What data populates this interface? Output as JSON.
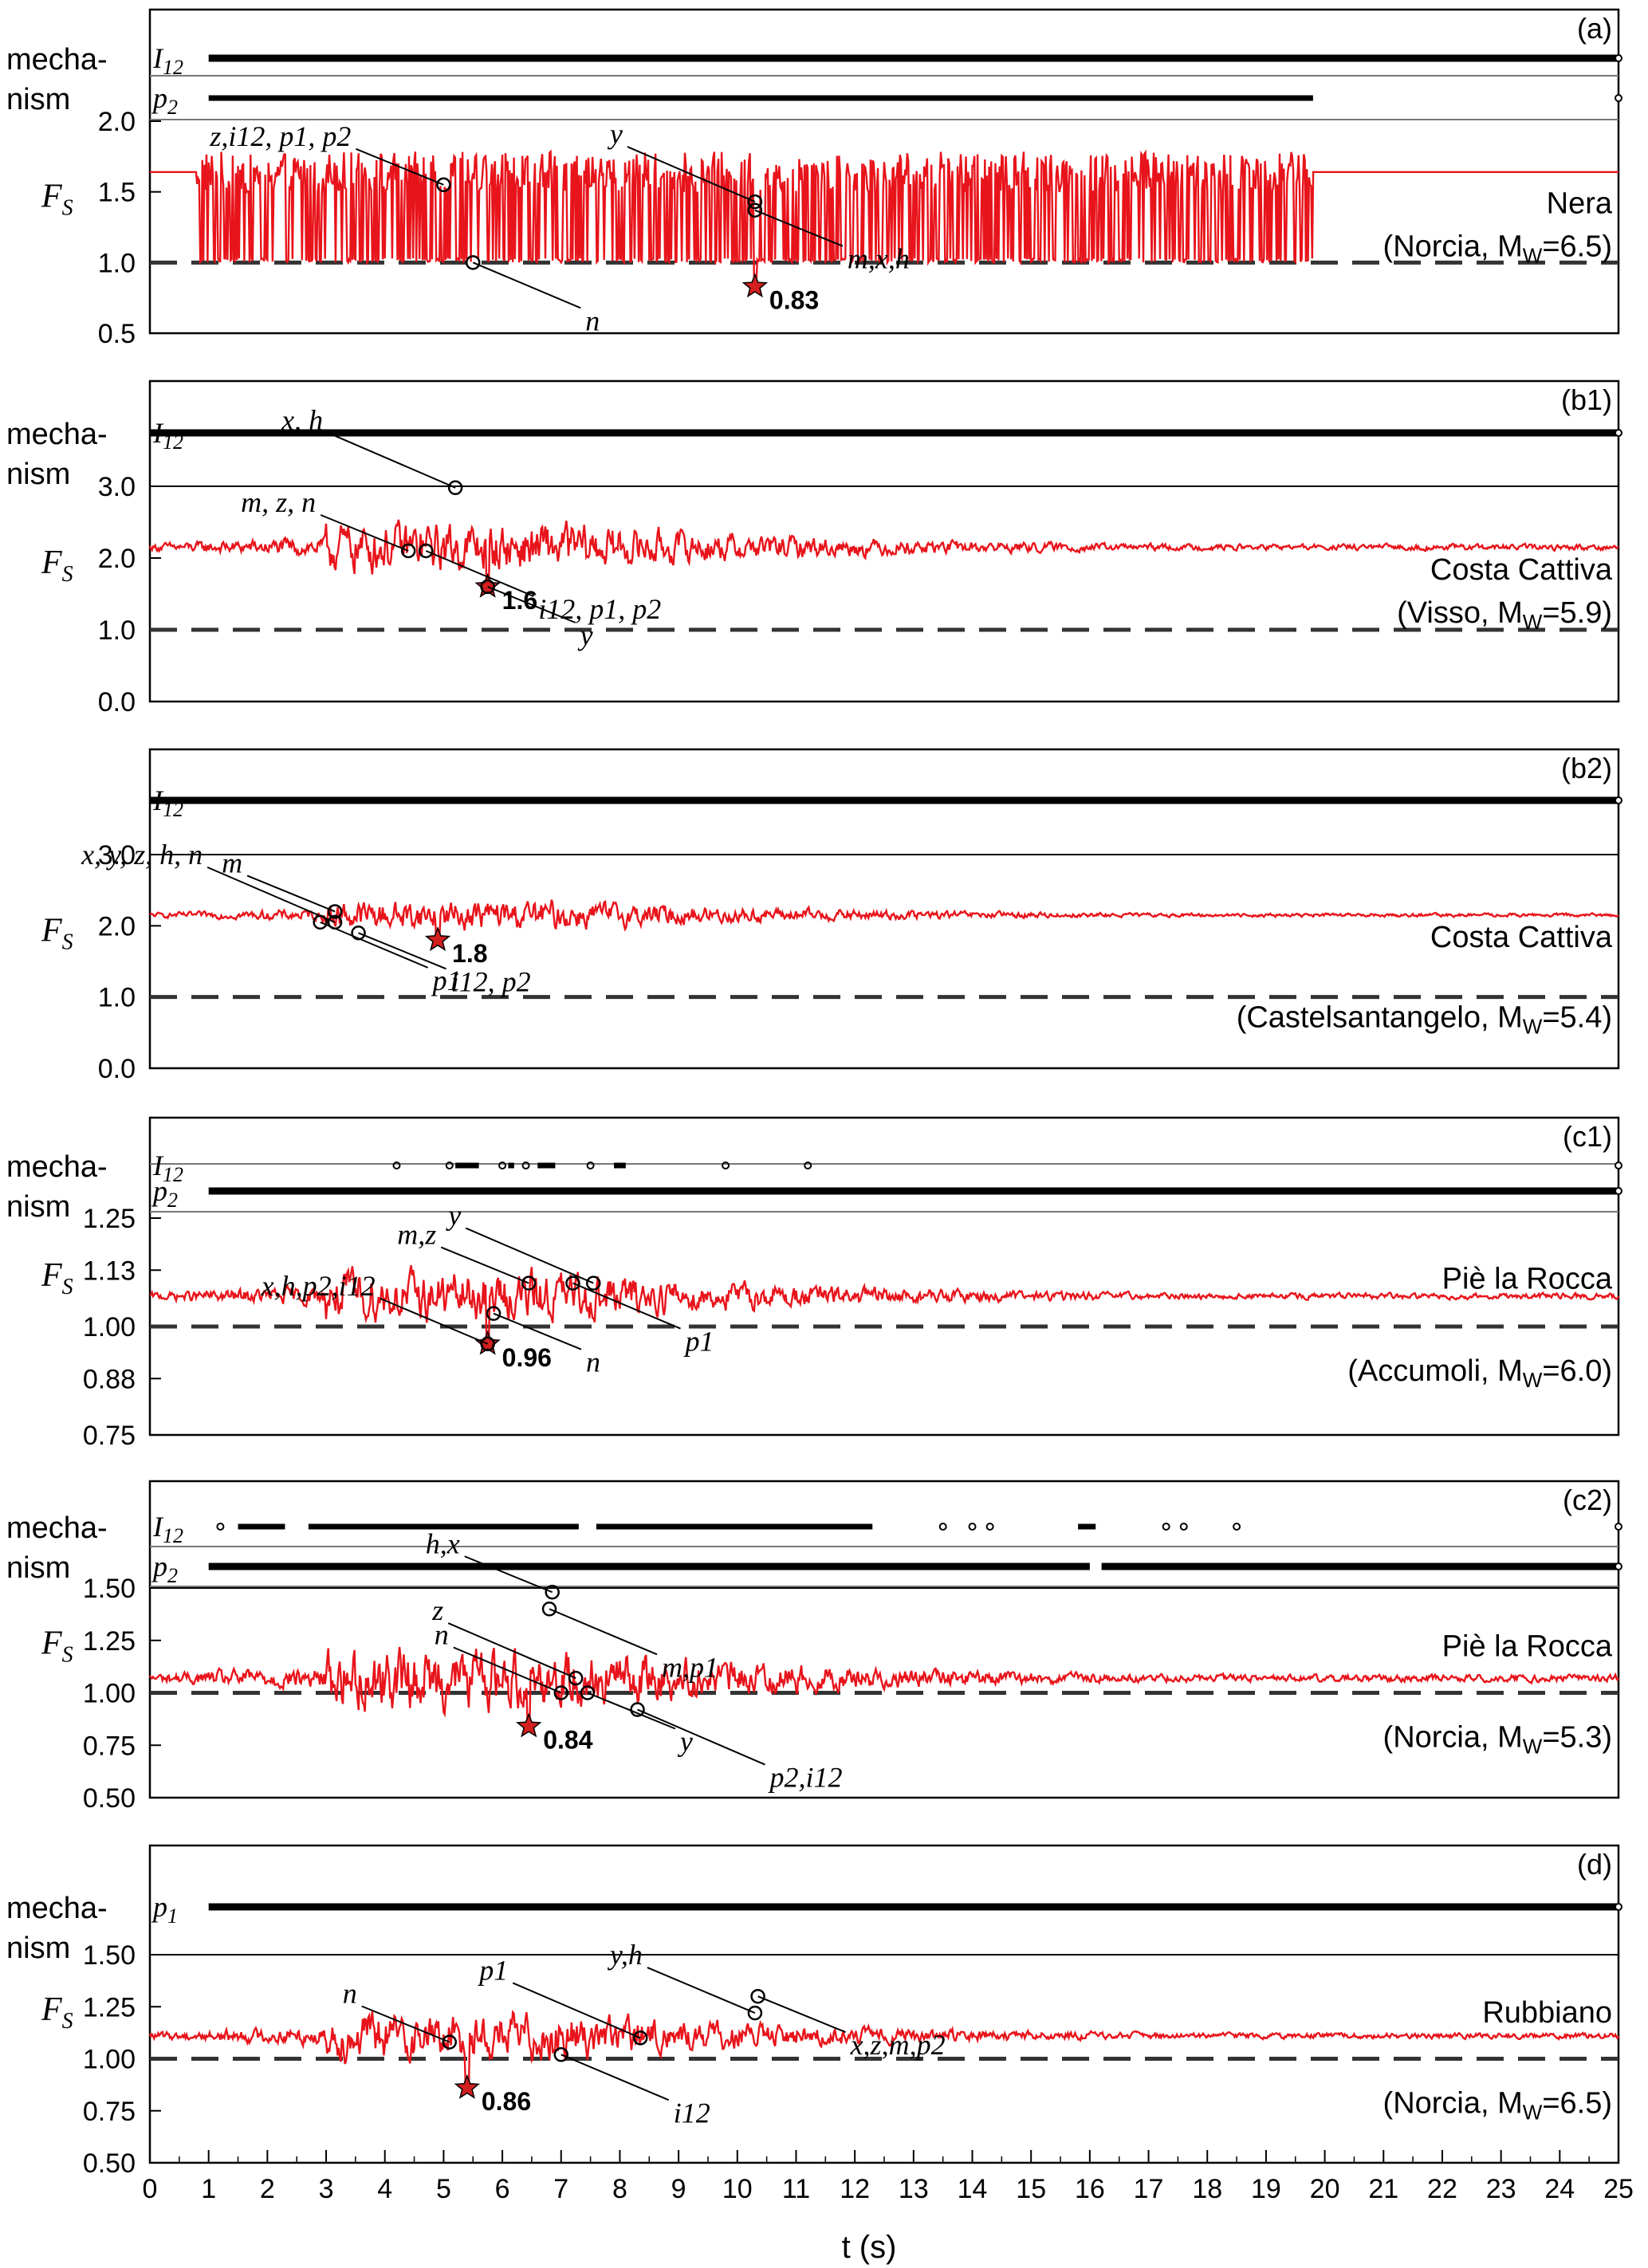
{
  "figure": {
    "xlabel": "t (s)",
    "x_ticks": [
      "0",
      "1",
      "2",
      "3",
      "4",
      "5",
      "6",
      "7",
      "8",
      "9",
      "10",
      "11",
      "12",
      "13",
      "14",
      "15",
      "16",
      "17",
      "18",
      "19",
      "20",
      "21",
      "22",
      "23",
      "24",
      "25"
    ],
    "fs_label": "F",
    "fs_sub": "S",
    "mechanism_label": [
      "mecha-",
      "nism"
    ],
    "colors": {
      "trace": "#e8141b",
      "star": "#d21f1f",
      "markers": "#000000",
      "threshold": "#333333"
    }
  },
  "chart_data": [
    {
      "type": "line",
      "panel": "(a)",
      "site": "Nera",
      "event": "(Norcia, MW=6.5)",
      "event_parts": [
        "(Norcia, M",
        "W",
        "=6.5)"
      ],
      "xlim": [
        0,
        25
      ],
      "ylim": [
        0.5,
        2.0
      ],
      "y_ticks": [
        "2.0",
        "1.5",
        "1.0",
        "0.5"
      ],
      "baseline": 1.64,
      "threshold": 1.0,
      "min_value": 0.83,
      "min_label": "0.83",
      "min_time": 10.3,
      "style": "sliding",
      "active_until": 19.8,
      "amplitude": 0.18,
      "mechanism_rows": [
        {
          "label": "I",
          "sub": "12",
          "ranges": [
            [
              1.0,
              25.0
            ]
          ]
        },
        {
          "label": "p",
          "sub": "2",
          "ranges": [
            [
              1.0,
              19.8
            ]
          ]
        }
      ],
      "annotations": [
        {
          "text": "z,i12, p1, p2",
          "t": 5.0,
          "v": 1.55
        },
        {
          "text": "n",
          "t": 5.5,
          "v": 1.0
        },
        {
          "text": "y",
          "t": 10.3,
          "v": 1.43
        },
        {
          "text": "m,x,h",
          "t": 10.3,
          "v": 1.37
        }
      ]
    },
    {
      "type": "line",
      "panel": "(b1)",
      "site": "Costa Cattiva",
      "event": "(Visso, MW=5.9)",
      "event_parts": [
        "(Visso, M",
        "W",
        "=5.9)"
      ],
      "xlim": [
        0,
        25
      ],
      "ylim": [
        0.0,
        3.0
      ],
      "y_ticks": [
        "3.0",
        "2.0",
        "1.0",
        "0.0"
      ],
      "baseline": 2.15,
      "threshold": 1.0,
      "min_value": 1.6,
      "min_label": "1.6",
      "min_time": 5.75,
      "style": "noise",
      "amplitude": 0.42,
      "mechanism_rows": [
        {
          "label": "I",
          "sub": "12",
          "ranges": [
            [
              0.0,
              25.0
            ]
          ]
        }
      ],
      "annotations": [
        {
          "text": "m, z, n",
          "t": 4.4,
          "v": 2.1
        },
        {
          "text": "i12, p1, p2",
          "t": 4.7,
          "v": 2.1
        },
        {
          "text": "x, h",
          "t": 5.2,
          "v": 2.98
        },
        {
          "text": "y",
          "t": 5.75,
          "v": 1.6
        }
      ]
    },
    {
      "type": "line",
      "panel": "(b2)",
      "site": "Costa Cattiva",
      "event": "(Castelsantangelo, MW=5.4)",
      "event_parts": [
        "(Castelsantangelo, M",
        "W",
        "=5.4)"
      ],
      "xlim": [
        0,
        25
      ],
      "ylim": [
        0.0,
        3.0
      ],
      "y_ticks": [
        "3.0",
        "2.0",
        "1.0",
        "0.0"
      ],
      "baseline": 2.15,
      "threshold": 1.0,
      "min_value": 1.8,
      "min_label": "1.8",
      "min_time": 4.9,
      "style": "noise",
      "amplitude": 0.25,
      "mechanism_rows": [
        {
          "label": "I",
          "sub": "12",
          "ranges": [
            [
              0.0,
              25.0
            ]
          ]
        }
      ],
      "annotations": [
        {
          "text": "m",
          "t": 3.15,
          "v": 2.2
        },
        {
          "text": "p1",
          "t": 2.9,
          "v": 2.05
        },
        {
          "text": "x, y, z, h, n",
          "t": 3.15,
          "v": 2.05
        },
        {
          "text": "i12, p2",
          "t": 3.55,
          "v": 1.9
        }
      ]
    },
    {
      "type": "line",
      "panel": "(c1)",
      "site": "Piè la Rocca",
      "event": "(Accumoli, MW=6.0)",
      "event_parts": [
        "(Accumoli, M",
        "W",
        "=6.0)"
      ],
      "xlim": [
        0,
        25
      ],
      "ylim": [
        0.75,
        1.25
      ],
      "y_ticks": [
        "1.25",
        "1.13",
        "1.00",
        "0.88",
        "0.75"
      ],
      "baseline": 1.07,
      "threshold": 1.0,
      "min_value": 0.96,
      "min_label": "0.96",
      "min_time": 5.75,
      "style": "noise",
      "amplitude": 0.07,
      "mechanism_rows": [
        {
          "label": "I",
          "sub": "12",
          "ranges": [
            [
              5.2,
              5.6
            ],
            [
              6.1,
              6.2
            ],
            [
              6.6,
              6.9
            ],
            [
              7.9,
              8.1
            ]
          ],
          "points": [
            4.2,
            5.1,
            6.0,
            6.4,
            7.5,
            9.8,
            11.2
          ]
        },
        {
          "label": "p",
          "sub": "2",
          "ranges": [
            [
              1.0,
              25.0
            ]
          ]
        }
      ],
      "annotations": [
        {
          "text": "m,z",
          "t": 6.45,
          "v": 1.1
        },
        {
          "text": "p1",
          "t": 7.2,
          "v": 1.1
        },
        {
          "text": "y",
          "t": 7.55,
          "v": 1.1
        },
        {
          "text": "n",
          "t": 5.85,
          "v": 1.03
        },
        {
          "text": "x,h,p2,i12",
          "t": 5.75,
          "v": 0.96
        }
      ]
    },
    {
      "type": "line",
      "panel": "(c2)",
      "site": "Piè la Rocca",
      "event": "(Norcia, MW=5.3)",
      "event_parts": [
        "(Norcia, M",
        "W",
        "=5.3)"
      ],
      "xlim": [
        0,
        25
      ],
      "ylim": [
        0.5,
        1.5
      ],
      "y_ticks": [
        "1.50",
        "1.25",
        "1.00",
        "0.75",
        "0.50"
      ],
      "baseline": 1.07,
      "threshold": 1.0,
      "min_value": 0.84,
      "min_label": "0.84",
      "min_time": 6.45,
      "style": "noise",
      "amplitude": 0.18,
      "mechanism_rows": [
        {
          "label": "I",
          "sub": "12",
          "ranges": [
            [
              1.5,
              2.3
            ],
            [
              2.7,
              7.3
            ],
            [
              7.6,
              12.3
            ],
            [
              15.8,
              16.1
            ]
          ],
          "points": [
            1.2,
            13.5,
            14.0,
            14.3,
            17.3,
            17.6,
            18.5
          ]
        },
        {
          "label": "p",
          "sub": "2",
          "ranges": [
            [
              1.0,
              16.0
            ],
            [
              16.2,
              25.0
            ]
          ]
        }
      ],
      "annotations": [
        {
          "text": "h,x",
          "t": 6.85,
          "v": 1.48
        },
        {
          "text": "m,p1",
          "t": 6.8,
          "v": 1.4
        },
        {
          "text": "z",
          "t": 7.25,
          "v": 1.07
        },
        {
          "text": "y",
          "t": 7.45,
          "v": 1.0
        },
        {
          "text": "n",
          "t": 7.0,
          "v": 1.0
        },
        {
          "text": "p2,i12",
          "t": 8.3,
          "v": 0.92
        }
      ]
    },
    {
      "type": "line",
      "panel": "(d)",
      "site": "Rubbiano",
      "event": "(Norcia, MW=6.5)",
      "event_parts": [
        "(Norcia, M",
        "W",
        "=6.5)"
      ],
      "xlim": [
        0,
        25
      ],
      "ylim": [
        0.5,
        1.5
      ],
      "y_ticks": [
        "1.50",
        "1.25",
        "1.00",
        "0.75",
        "0.50"
      ],
      "baseline": 1.11,
      "threshold": 1.0,
      "min_value": 0.86,
      "min_label": "0.86",
      "min_time": 5.4,
      "style": "noise",
      "amplitude": 0.14,
      "mechanism_rows": [
        {
          "label": "p",
          "sub": "1",
          "ranges": [
            [
              1.0,
              25.0
            ]
          ]
        }
      ],
      "annotations": [
        {
          "text": "n",
          "t": 5.1,
          "v": 1.08
        },
        {
          "text": "i12",
          "t": 7.0,
          "v": 1.02
        },
        {
          "text": "p1",
          "t": 8.35,
          "v": 1.1
        },
        {
          "text": "x,z,m,p2",
          "t": 10.35,
          "v": 1.3
        },
        {
          "text": "y,h",
          "t": 10.3,
          "v": 1.22
        }
      ]
    }
  ]
}
